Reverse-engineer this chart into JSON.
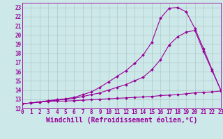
{
  "xlabel": "Windchill (Refroidissement éolien,°C)",
  "x_values": [
    0,
    1,
    2,
    3,
    4,
    5,
    6,
    7,
    8,
    9,
    10,
    11,
    12,
    13,
    14,
    15,
    16,
    17,
    18,
    19,
    20,
    21,
    22,
    23
  ],
  "line1": [
    12.5,
    12.6,
    12.7,
    12.75,
    12.8,
    12.8,
    12.85,
    12.9,
    12.95,
    13.0,
    13.05,
    13.1,
    13.15,
    13.2,
    13.25,
    13.3,
    13.4,
    13.45,
    13.5,
    13.6,
    13.7,
    13.75,
    13.8,
    13.9
  ],
  "line2": [
    12.5,
    12.6,
    12.7,
    12.8,
    12.9,
    13.0,
    13.1,
    13.3,
    13.5,
    13.7,
    14.0,
    14.3,
    14.6,
    15.0,
    15.4,
    16.2,
    17.3,
    18.9,
    19.8,
    20.3,
    20.5,
    18.2,
    16.1,
    14.0
  ],
  "line3": [
    12.5,
    12.6,
    12.7,
    12.85,
    12.95,
    13.05,
    13.2,
    13.5,
    13.8,
    14.3,
    14.9,
    15.5,
    16.1,
    16.9,
    17.8,
    19.2,
    21.8,
    22.9,
    23.0,
    22.5,
    20.7,
    18.5,
    16.2,
    14.0
  ],
  "line_color": "#990099",
  "bg_color": "#cce8e8",
  "grid_color": "#b0c8c8",
  "ylim": [
    12,
    23.5
  ],
  "xlim": [
    0,
    23
  ],
  "yticks": [
    12,
    13,
    14,
    15,
    16,
    17,
    18,
    19,
    20,
    21,
    22,
    23
  ],
  "xticks": [
    0,
    1,
    2,
    3,
    4,
    5,
    6,
    7,
    8,
    9,
    10,
    11,
    12,
    13,
    14,
    15,
    16,
    17,
    18,
    19,
    20,
    21,
    22,
    23
  ],
  "tick_fontsize": 5.5,
  "xlabel_fontsize": 7.0,
  "markersize": 2.0,
  "linewidth": 0.8
}
